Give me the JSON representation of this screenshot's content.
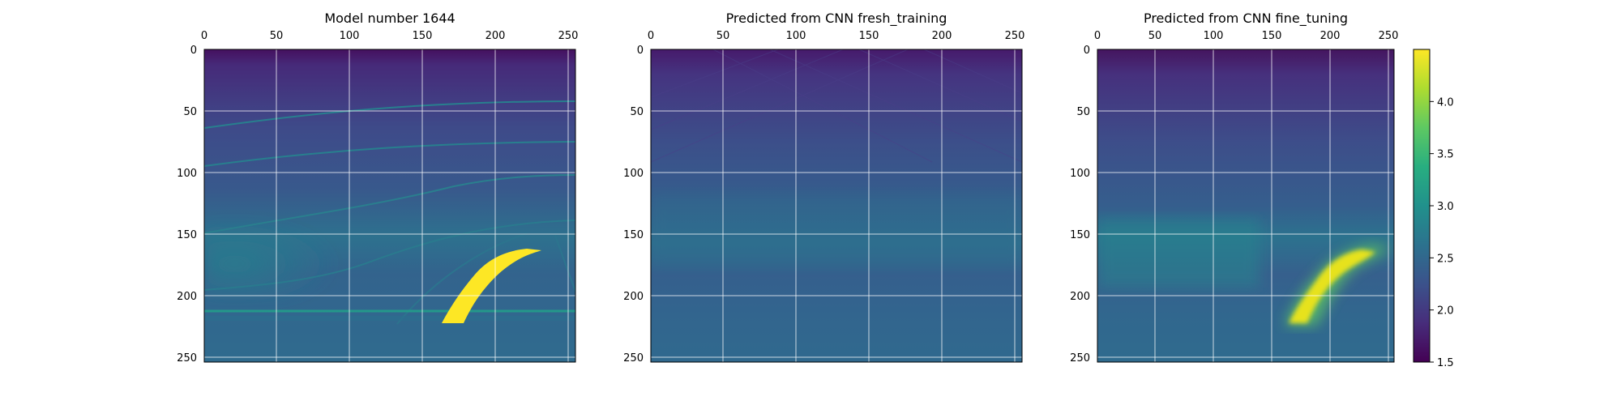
{
  "colors": {
    "viridis": [
      "#440154",
      "#472d7b",
      "#3b528b",
      "#2c728e",
      "#21918c",
      "#28ae80",
      "#5ec962",
      "#addc30",
      "#fde725"
    ]
  },
  "colorbar": {
    "vmin": 1.5,
    "vmax": 4.5,
    "ticks": [
      "1.5",
      "2.0",
      "2.5",
      "3.0",
      "3.5",
      "4.0"
    ]
  },
  "chart_data": [
    {
      "type": "heatmap",
      "title": "Model number 1644",
      "xlim": [
        0,
        255
      ],
      "ylim": [
        255,
        0
      ],
      "xticks": [
        "0",
        "50",
        "100",
        "150",
        "200",
        "250"
      ],
      "yticks": [
        "0",
        "50",
        "100",
        "150",
        "200",
        "250"
      ],
      "grid": true,
      "description_values": {
        "background_top": 1.75,
        "background_mid": 2.3,
        "background_bottom": 2.55,
        "anomaly_value": 4.5
      }
    },
    {
      "type": "heatmap",
      "title": "Predicted from CNN fresh_training",
      "xlim": [
        0,
        255
      ],
      "ylim": [
        255,
        0
      ],
      "xticks": [
        "0",
        "50",
        "100",
        "150",
        "200",
        "250"
      ],
      "yticks": [
        "0",
        "50",
        "100",
        "150",
        "200",
        "250"
      ],
      "grid": true,
      "description_values": {
        "background_top": 1.75,
        "background_mid": 2.35,
        "background_bottom": 2.5
      }
    },
    {
      "type": "heatmap",
      "title": "Predicted from CNN fine_tuning",
      "xlim": [
        0,
        255
      ],
      "ylim": [
        255,
        0
      ],
      "xticks": [
        "0",
        "50",
        "100",
        "150",
        "200",
        "250"
      ],
      "yticks": [
        "0",
        "50",
        "100",
        "150",
        "200",
        "250"
      ],
      "grid": true,
      "description_values": {
        "background_top": 1.75,
        "background_mid": 2.35,
        "background_bottom": 2.55,
        "anomaly_value": 4.4
      }
    }
  ]
}
